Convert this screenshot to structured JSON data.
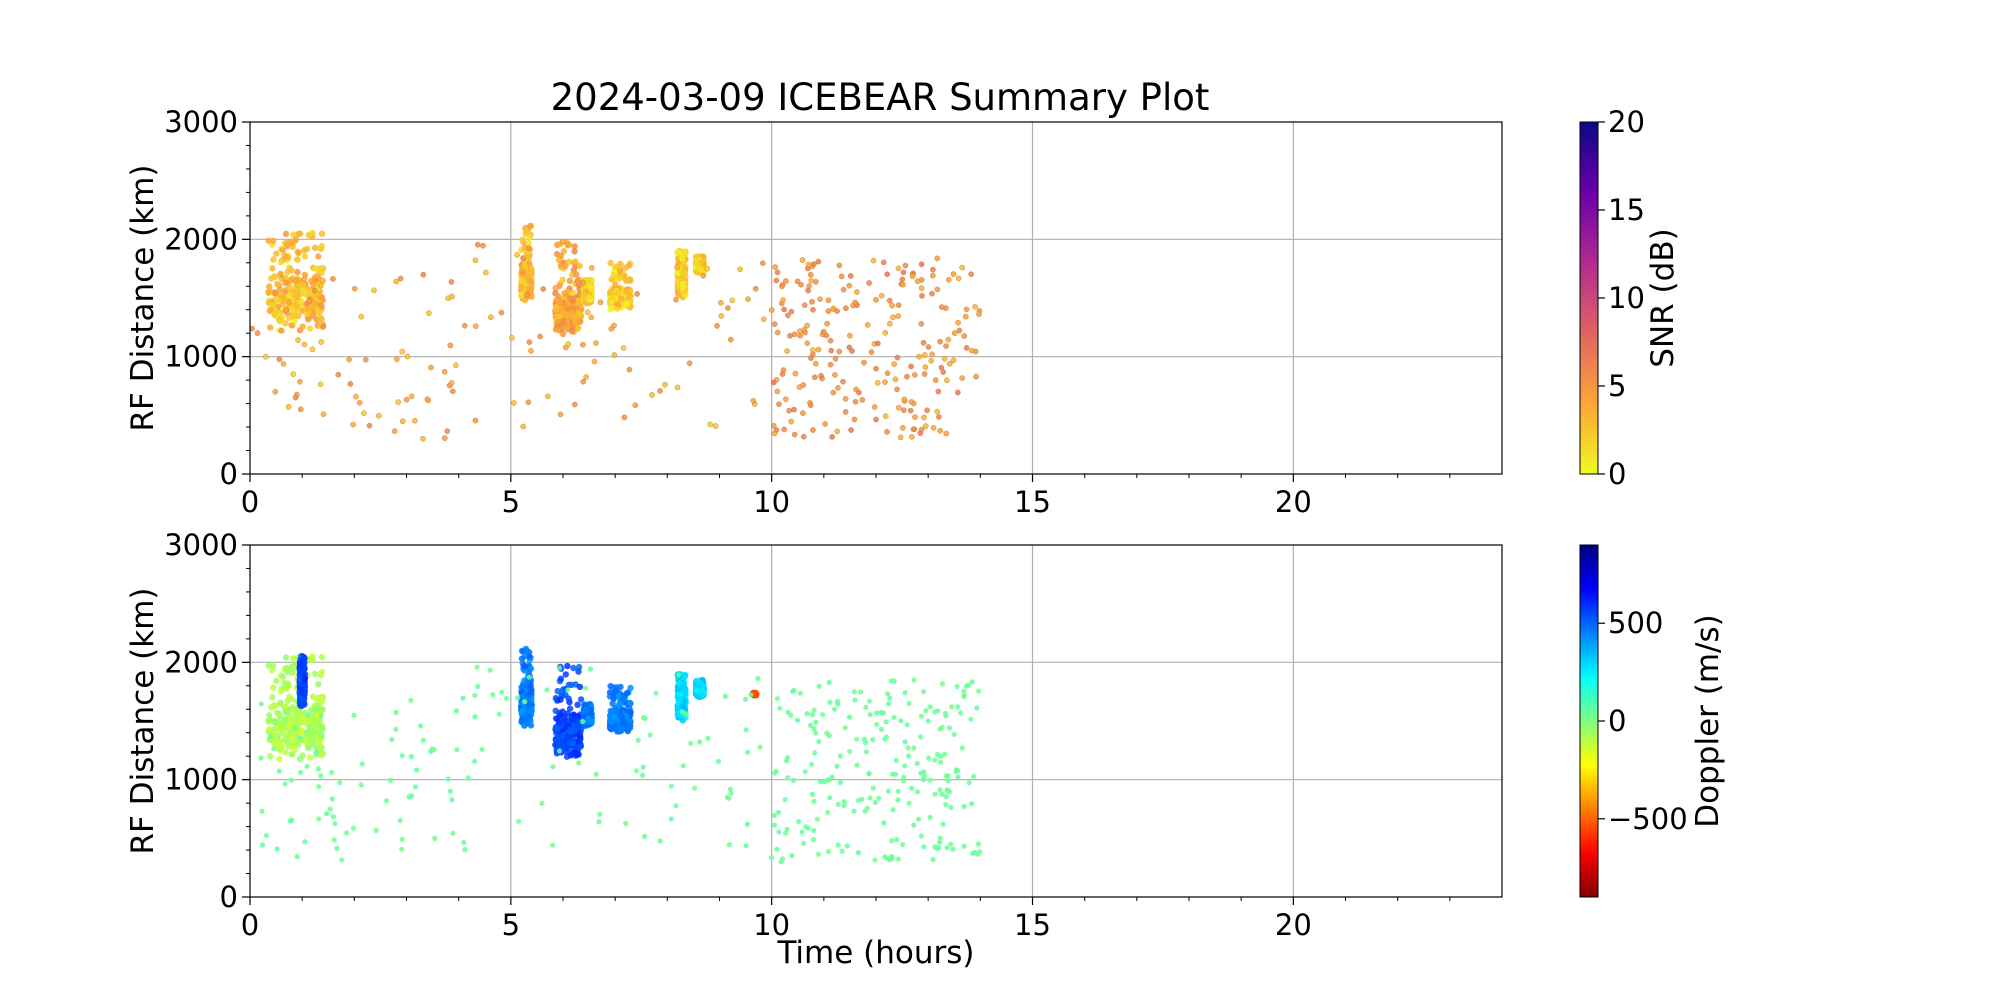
{
  "figure": {
    "title": "2024-03-09 ICEBEAR Summary Plot",
    "xlabel": "Time (hours)"
  },
  "chart_data": [
    {
      "type": "scatter",
      "panel": "snr",
      "xlabel": "",
      "ylabel": "RF Distance (km)",
      "xlim": [
        0,
        24
      ],
      "ylim": [
        0,
        3000
      ],
      "xticks": [
        "0",
        "5",
        "10",
        "15",
        "20"
      ],
      "yticks": [
        "0",
        "1000",
        "2000",
        "3000"
      ],
      "grid": true,
      "colorbar": {
        "label": "SNR (dB)",
        "range": [
          0,
          20
        ],
        "ticks": [
          "0",
          "5",
          "10",
          "15",
          "20"
        ],
        "colormap": "plasma_r",
        "colors": [
          "#f0f921",
          "#fca636",
          "#e16462",
          "#b12a90",
          "#6a00a8",
          "#0d0887"
        ]
      },
      "series": [
        {
          "clusters": [
            {
              "x": [
                0.35,
                1.4
              ],
              "y": [
                1200,
                1800
              ],
              "y_peak": 2070,
              "density": "dense",
              "value": 3
            },
            {
              "x": [
                5.2,
                5.4
              ],
              "y": [
                1450,
                1800
              ],
              "y_peak": 2120,
              "density": "dense",
              "value": 3
            },
            {
              "x": [
                5.85,
                6.35
              ],
              "y": [
                1180,
                1600
              ],
              "y_peak": 1980,
              "density": "dense",
              "value": 4
            },
            {
              "x": [
                6.4,
                6.55
              ],
              "y": [
                1450,
                1650
              ],
              "y_peak": 1650,
              "density": "dense",
              "value": 2
            },
            {
              "x": [
                6.9,
                7.3
              ],
              "y": [
                1400,
                1600
              ],
              "y_peak": 1800,
              "density": "dense",
              "value": 2
            },
            {
              "x": [
                8.2,
                8.35
              ],
              "y": [
                1500,
                1870
              ],
              "y_peak": 1900,
              "density": "dense",
              "value": 2
            },
            {
              "x": [
                8.55,
                8.7
              ],
              "y": [
                1700,
                1850
              ],
              "y_peak": 1850,
              "density": "dense",
              "value": 2
            },
            {
              "x": [
                0.0,
                4.0
              ],
              "y": [
                300,
                1700
              ],
              "density": "sparse",
              "value": 4
            },
            {
              "x": [
                4.0,
                10.0
              ],
              "y": [
                400,
                2000
              ],
              "density": "sparse",
              "value": 4
            },
            {
              "x": [
                10.0,
                14.0
              ],
              "y": [
                300,
                1850
              ],
              "density": "medium",
              "value": 5
            }
          ]
        }
      ]
    },
    {
      "type": "scatter",
      "panel": "doppler",
      "xlabel": "Time (hours)",
      "ylabel": "RF Distance (km)",
      "xlim": [
        0,
        24
      ],
      "ylim": [
        0,
        3000
      ],
      "xticks": [
        "0",
        "5",
        "10",
        "15",
        "20"
      ],
      "yticks": [
        "0",
        "1000",
        "2000",
        "3000"
      ],
      "grid": true,
      "colorbar": {
        "label": "Doppler (m/s)",
        "range": [
          -900,
          900
        ],
        "ticks": [
          "−500",
          "0",
          "500"
        ],
        "colormap": "jet_r",
        "colors": [
          "#800000",
          "#ff0000",
          "#ff8000",
          "#ffff00",
          "#80ff80",
          "#00ffff",
          "#0080ff",
          "#0000ff",
          "#000080"
        ]
      },
      "series": [
        {
          "clusters": [
            {
              "x": [
                0.35,
                1.4
              ],
              "y": [
                1150,
                1750
              ],
              "y_peak": 2070,
              "density": "dense",
              "value": -80
            },
            {
              "x": [
                0.95,
                1.05
              ],
              "y": [
                1600,
                2070
              ],
              "density": "dense",
              "value": 550
            },
            {
              "x": [
                5.2,
                5.4
              ],
              "y": [
                1450,
                1800
              ],
              "y_peak": 2120,
              "density": "dense",
              "value": 450
            },
            {
              "x": [
                5.85,
                6.35
              ],
              "y": [
                1180,
                1600
              ],
              "y_peak": 1980,
              "density": "dense",
              "value": 550
            },
            {
              "x": [
                6.4,
                6.55
              ],
              "y": [
                1450,
                1650
              ],
              "density": "dense",
              "value": 450
            },
            {
              "x": [
                6.9,
                7.3
              ],
              "y": [
                1400,
                1600
              ],
              "y_peak": 1800,
              "density": "dense",
              "value": 450
            },
            {
              "x": [
                8.2,
                8.35
              ],
              "y": [
                1500,
                1870
              ],
              "y_peak": 1900,
              "density": "dense",
              "value": 300
            },
            {
              "x": [
                8.55,
                8.7
              ],
              "y": [
                1700,
                1850
              ],
              "density": "dense",
              "value": 300
            },
            {
              "x": [
                9.65,
                9.7
              ],
              "y": [
                1720,
                1740
              ],
              "density": "dense",
              "value": -550
            },
            {
              "x": [
                0.0,
                4.0
              ],
              "y": [
                300,
                1700
              ],
              "density": "sparse",
              "value": 40
            },
            {
              "x": [
                4.0,
                10.0
              ],
              "y": [
                400,
                2000
              ],
              "density": "sparse",
              "value": 40
            },
            {
              "x": [
                10.0,
                14.0
              ],
              "y": [
                300,
                1850
              ],
              "density": "medium",
              "value": 40
            }
          ]
        }
      ]
    }
  ]
}
